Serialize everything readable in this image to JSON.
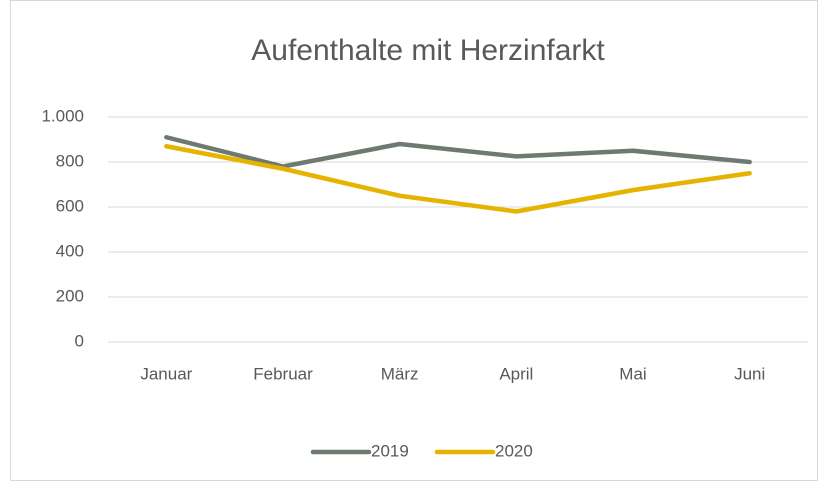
{
  "chart_data": {
    "type": "line",
    "title": "Aufenthalte mit Herzinfarkt",
    "categories": [
      "Januar",
      "Februar",
      "März",
      "April",
      "Mai",
      "Juni"
    ],
    "series": [
      {
        "name": "2019",
        "color": "#6e7a70",
        "values": [
          910,
          780,
          880,
          825,
          850,
          800
        ]
      },
      {
        "name": "2020",
        "color": "#e6b300",
        "values": [
          870,
          770,
          650,
          580,
          675,
          750
        ]
      }
    ],
    "ylim": [
      0,
      1000
    ],
    "yticks": [
      0,
      200,
      400,
      600,
      800,
      {
        "value": 1000,
        "label": "1.000"
      }
    ],
    "grid": true,
    "legend": "bottom"
  }
}
